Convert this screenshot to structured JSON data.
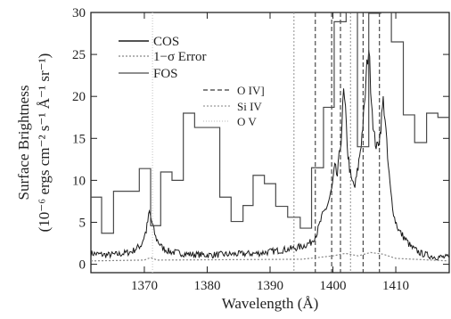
{
  "chart_data": {
    "type": "line",
    "xlabel": "Wavelength (Å)",
    "ylabel_line1": "Surface Brightness",
    "ylabel_line2": "(10⁻⁶ ergs cm⁻² s⁻¹ Å⁻¹ sr⁻¹)",
    "xlim": [
      1361.5,
      1418.5
    ],
    "ylim": [
      -1,
      30
    ],
    "x_ticks": [
      1370,
      1380,
      1390,
      1400,
      1410
    ],
    "y_ticks": [
      0,
      5,
      10,
      15,
      20,
      25,
      30
    ],
    "grid": false,
    "legend_position": "top-left",
    "series": [
      {
        "name": "COS",
        "color": "#1a1a1a",
        "style": "solid",
        "points": [
          [
            1361.5,
            1.3
          ],
          [
            1364,
            1.1
          ],
          [
            1366,
            1.2
          ],
          [
            1368,
            1.5
          ],
          [
            1369.5,
            2.3
          ],
          [
            1370.3,
            4.0
          ],
          [
            1370.8,
            6.2
          ],
          [
            1371.2,
            5.0
          ],
          [
            1371.8,
            3.2
          ],
          [
            1372.8,
            2.0
          ],
          [
            1374,
            1.5
          ],
          [
            1377,
            1.2
          ],
          [
            1380,
            1.1
          ],
          [
            1384,
            1.2
          ],
          [
            1388,
            1.3
          ],
          [
            1391,
            1.6
          ],
          [
            1393,
            1.8
          ],
          [
            1395,
            2.1
          ],
          [
            1396.5,
            2.6
          ],
          [
            1397.5,
            3.8
          ],
          [
            1398.2,
            5.5
          ],
          [
            1399.2,
            7.2
          ],
          [
            1399.8,
            8.8
          ],
          [
            1400.3,
            11.5
          ],
          [
            1400.7,
            10.5
          ],
          [
            1401.3,
            15.0
          ],
          [
            1401.7,
            20.5
          ],
          [
            1402.0,
            18.0
          ],
          [
            1402.4,
            13.0
          ],
          [
            1402.9,
            10.0
          ],
          [
            1403.5,
            9.2
          ],
          [
            1404.0,
            11.5
          ],
          [
            1404.5,
            14.5
          ],
          [
            1405.0,
            18.5
          ],
          [
            1405.4,
            23.5
          ],
          [
            1405.7,
            26.0
          ],
          [
            1406.0,
            21.5
          ],
          [
            1406.5,
            15.5
          ],
          [
            1407.0,
            13.8
          ],
          [
            1407.5,
            15.5
          ],
          [
            1408.0,
            19.5
          ],
          [
            1408.3,
            17.5
          ],
          [
            1408.7,
            12.5
          ],
          [
            1409.2,
            8.5
          ],
          [
            1409.8,
            5.5
          ],
          [
            1410.5,
            4.0
          ],
          [
            1411.5,
            3.0
          ],
          [
            1412.5,
            2.0
          ],
          [
            1414,
            1.3
          ],
          [
            1416,
            0.9
          ],
          [
            1418.5,
            0.8
          ]
        ]
      },
      {
        "name": "1−σ Error",
        "color": "#888888",
        "style": "dotted",
        "values_note": "",
        "points": [
          [
            1361.5,
            0.4
          ],
          [
            1370,
            0.5
          ],
          [
            1371,
            0.8
          ],
          [
            1372,
            0.5
          ],
          [
            1395,
            0.6
          ],
          [
            1400,
            1.0
          ],
          [
            1402,
            1.3
          ],
          [
            1404,
            1.0
          ],
          [
            1406,
            1.4
          ],
          [
            1408,
            1.2
          ],
          [
            1410,
            0.7
          ],
          [
            1418.5,
            0.4
          ]
        ]
      },
      {
        "name": "FOS",
        "color": "#4a4a4a",
        "style": "steps",
        "points": [
          [
            1361.5,
            8
          ],
          [
            1363.2,
            3.7
          ],
          [
            1365.1,
            8.7
          ],
          [
            1369.2,
            11.4
          ],
          [
            1371.0,
            4.6
          ],
          [
            1372.6,
            11.0
          ],
          [
            1374.4,
            10.0
          ],
          [
            1376.2,
            18.0
          ],
          [
            1378.0,
            16.3
          ],
          [
            1382.0,
            8.0
          ],
          [
            1383.8,
            5.1
          ],
          [
            1385.7,
            7.0
          ],
          [
            1387.3,
            10.6
          ],
          [
            1389.1,
            9.6
          ],
          [
            1390.9,
            6.9
          ],
          [
            1392.8,
            5.6
          ],
          [
            1394.8,
            4.3
          ],
          [
            1396.6,
            11.5
          ],
          [
            1398.5,
            18.7
          ],
          [
            1400.2,
            28.9
          ],
          [
            1402.1,
            30.0
          ],
          [
            1403.9,
            14.0
          ],
          [
            1405.7,
            29.9
          ],
          [
            1407.6,
            30.0
          ],
          [
            1409.3,
            26.5
          ],
          [
            1411.2,
            17.8
          ],
          [
            1413.0,
            14.5
          ],
          [
            1414.9,
            18.0
          ],
          [
            1416.7,
            17.5
          ],
          [
            1418.5,
            17.5
          ]
        ]
      }
    ],
    "reference_lines": [
      {
        "name": "O IV]",
        "color": "#3a3a3a",
        "dash": "5,3",
        "x": [
          1397.2,
          1399.8,
          1401.2,
          1404.8,
          1407.4
        ]
      },
      {
        "name": "Si IV",
        "color": "#9a9a9a",
        "dash": "2,2",
        "x": [
          1402.8,
          1393.8
        ]
      },
      {
        "name": "O V",
        "color": "#c8c8c8",
        "dash": "1,2",
        "x": [
          1371.3
        ]
      }
    ],
    "legend": [
      "COS",
      "1−σ Error",
      "FOS"
    ],
    "annotation_legend": [
      "O IV]",
      "Si IV",
      "O V"
    ]
  }
}
